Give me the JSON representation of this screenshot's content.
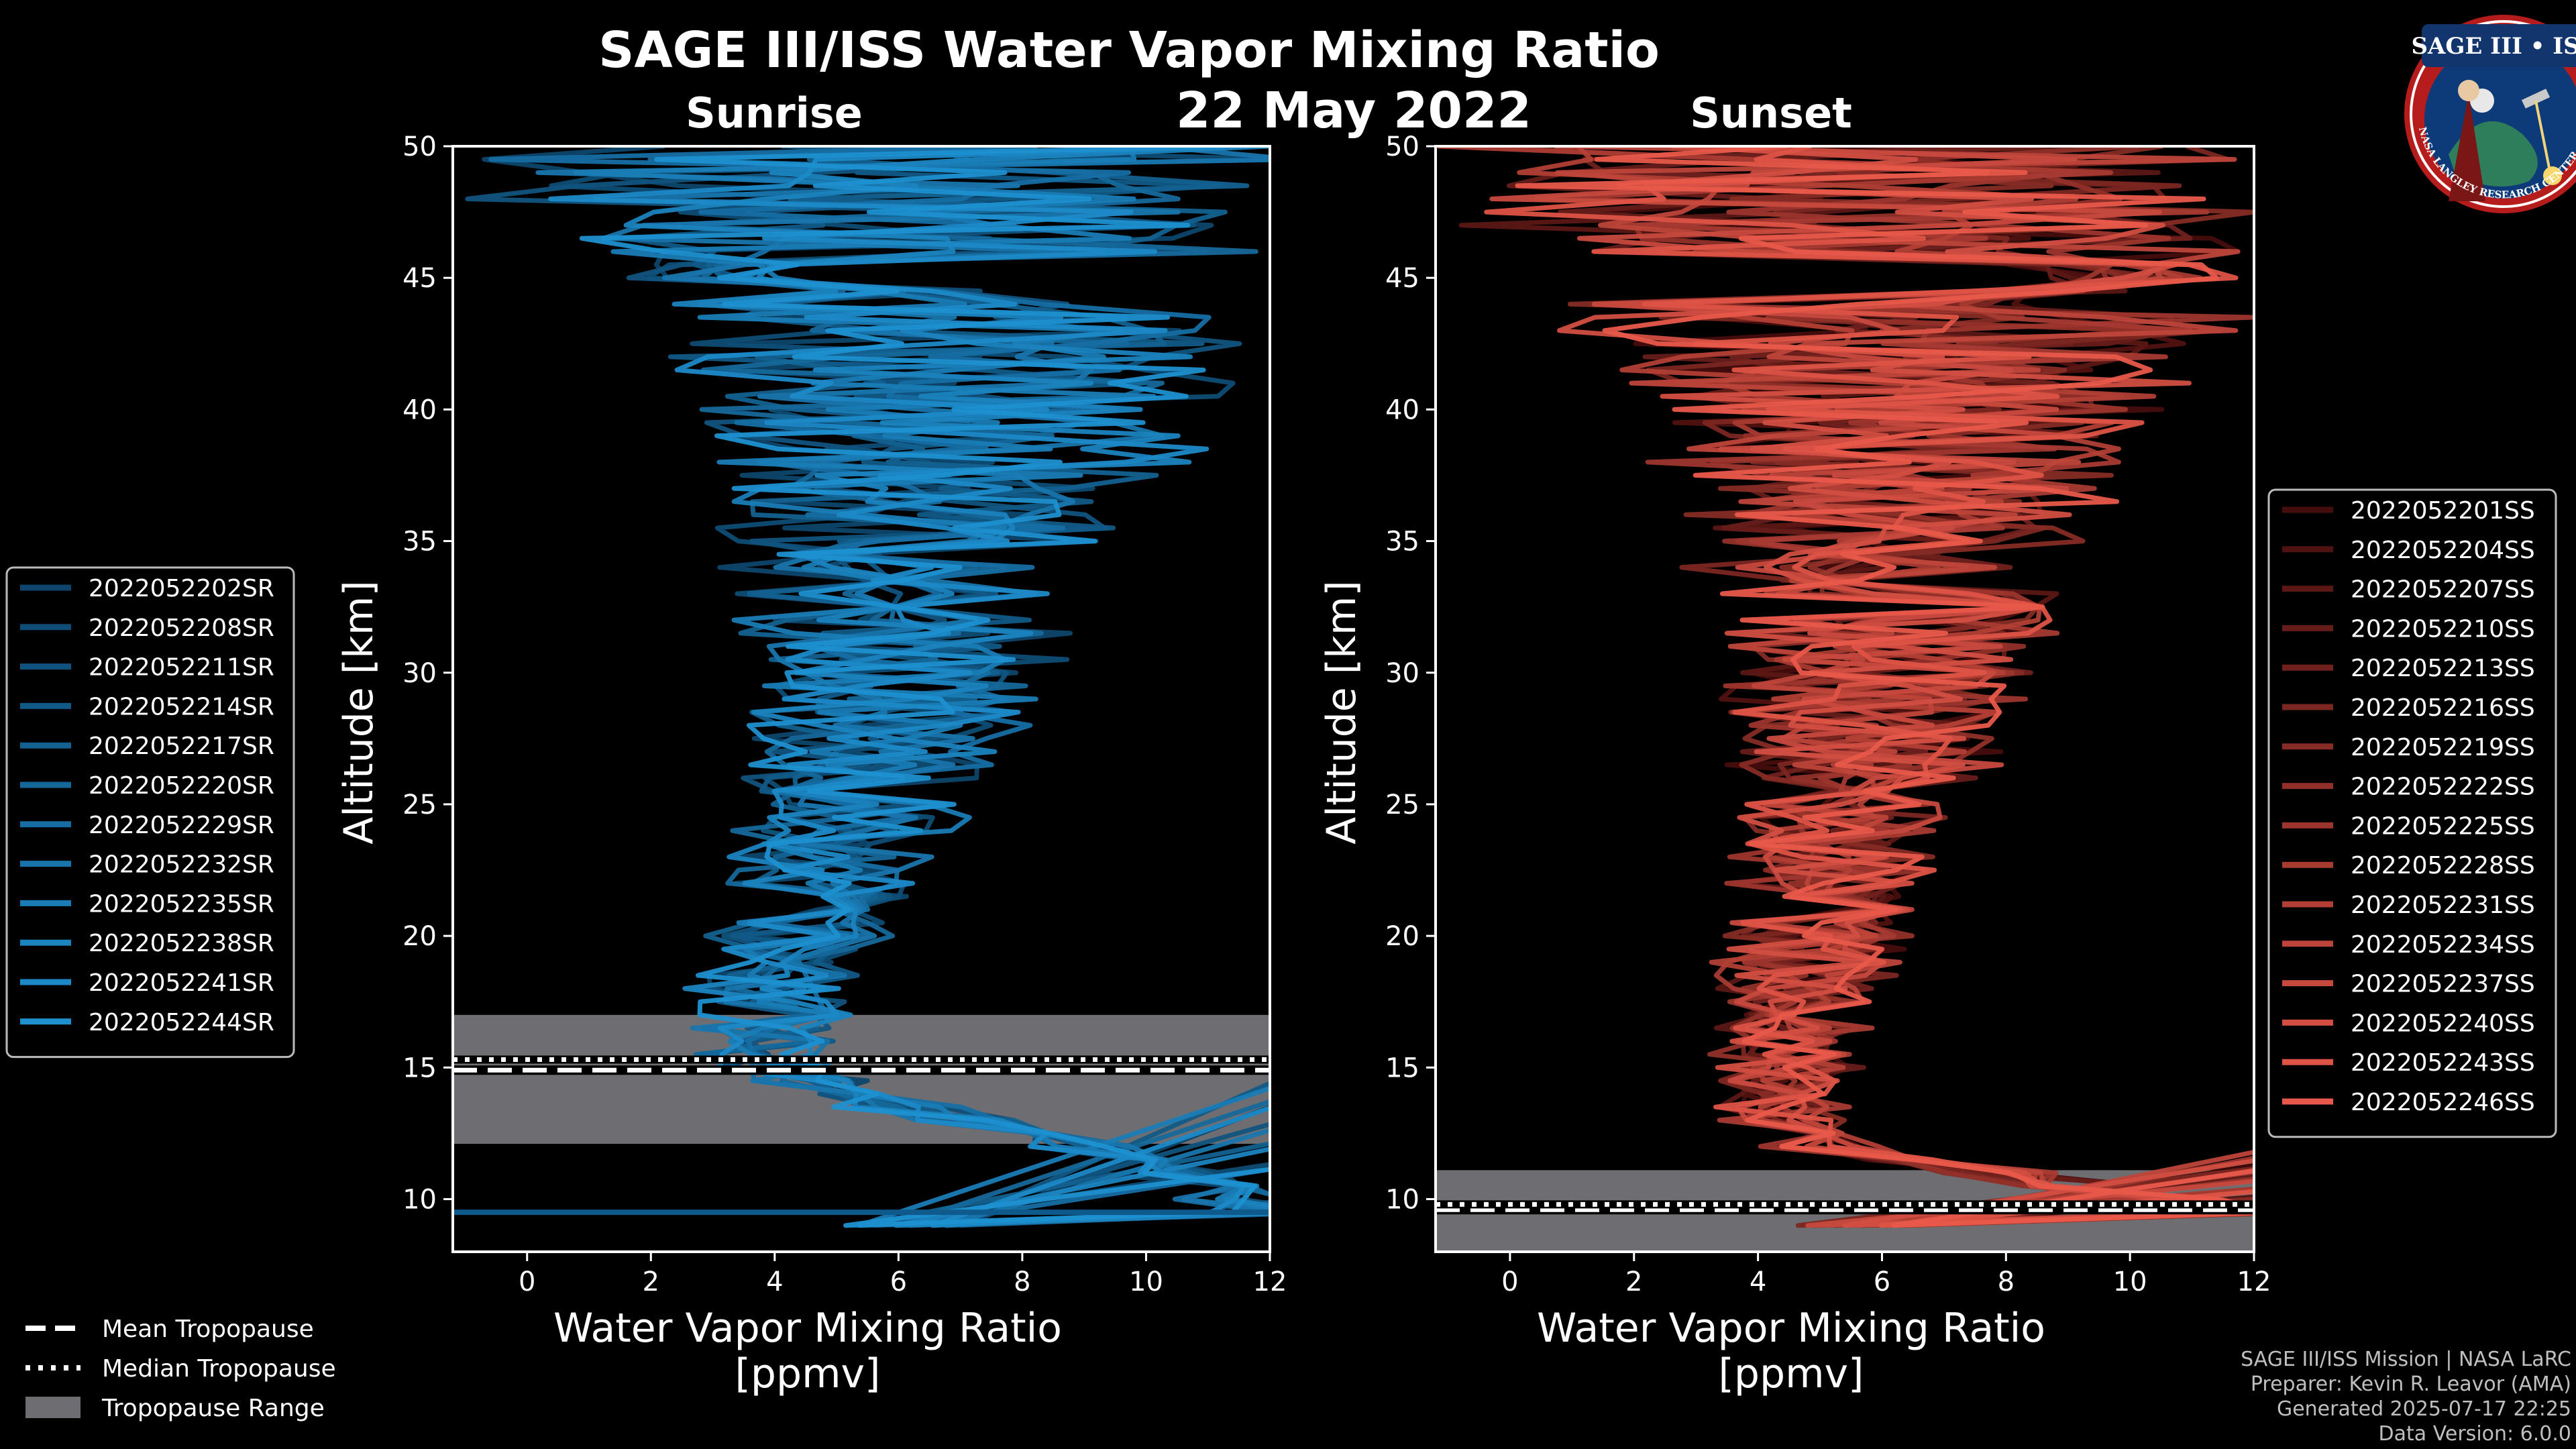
{
  "figure": {
    "title": "SAGE III/ISS Water Vapor Mixing Ratio",
    "date": "22 May 2022",
    "badge": {
      "name": "SAGE III • ISS",
      "ring_text": "BALL • NASA LANGLEY RESEARCH CENTER • TAS • ESA"
    },
    "credits": [
      "SAGE III/ISS Mission | NASA LaRC",
      "Preparer: Kevin R. Leavor (AMA)",
      "Generated 2025-07-17 22:25",
      "Data Version: 6.0.0"
    ],
    "bottom_legend": [
      {
        "label": "Mean Tropopause",
        "style": "dashed"
      },
      {
        "label": "Median Tropopause",
        "style": "dotted"
      },
      {
        "label": "Tropopause Range",
        "style": "patch"
      }
    ],
    "colors": {
      "sunrise": "#1e90d0",
      "sunset": "#e8584a",
      "tropo_fill": "#6e6e72",
      "background": "#000000"
    }
  },
  "chart_data": [
    {
      "id": "sunrise",
      "type": "line",
      "title": "Sunrise",
      "xlabel_line1": "Water Vapor Mixing Ratio",
      "xlabel_line2": "[ppmv]",
      "ylabel": "Altitude [km]",
      "xlim": [
        -1.2,
        12
      ],
      "ylim": [
        8,
        50
      ],
      "xticks": [
        0,
        2,
        4,
        6,
        8,
        10,
        12
      ],
      "yticks": [
        10,
        15,
        20,
        25,
        30,
        35,
        40,
        45,
        50
      ],
      "tropopause": {
        "mean": 14.9,
        "median": 15.3,
        "range": [
          12.1,
          17.0
        ]
      },
      "series_names": [
        "2022052202SR",
        "2022052208SR",
        "2022052211SR",
        "2022052214SR",
        "2022052217SR",
        "2022052220SR",
        "2022052229SR",
        "2022052232SR",
        "2022052235SR",
        "2022052238SR",
        "2022052241SR",
        "2022052244SR"
      ],
      "mean_profile": [
        {
          "alt": 9.5,
          "wv": 12.0
        },
        {
          "alt": 12.0,
          "wv": 9.0
        },
        {
          "alt": 14.0,
          "wv": 5.0
        },
        {
          "alt": 15.5,
          "wv": 3.6
        },
        {
          "alt": 18.0,
          "wv": 4.0
        },
        {
          "alt": 20.0,
          "wv": 4.4
        },
        {
          "alt": 25.0,
          "wv": 5.3
        },
        {
          "alt": 30.0,
          "wv": 6.0
        },
        {
          "alt": 35.0,
          "wv": 6.4
        },
        {
          "alt": 40.0,
          "wv": 6.8
        },
        {
          "alt": 45.0,
          "wv": 6.5
        },
        {
          "alt": 50.0,
          "wv": 6.0
        }
      ]
    },
    {
      "id": "sunset",
      "type": "line",
      "title": "Sunset",
      "xlabel_line1": "Water Vapor Mixing Ratio",
      "xlabel_line2": "[ppmv]",
      "ylabel": "Altitude [km]",
      "xlim": [
        -1.2,
        12
      ],
      "ylim": [
        8,
        50
      ],
      "xticks": [
        0,
        2,
        4,
        6,
        8,
        10,
        12
      ],
      "yticks": [
        10,
        15,
        20,
        25,
        30,
        35,
        40,
        45,
        50
      ],
      "tropopause": {
        "mean": 9.6,
        "median": 9.8,
        "range": [
          8.0,
          11.1
        ]
      },
      "series_names": [
        "2022052201SS",
        "2022052204SS",
        "2022052207SS",
        "2022052210SS",
        "2022052213SS",
        "2022052216SS",
        "2022052219SS",
        "2022052222SS",
        "2022052225SS",
        "2022052228SS",
        "2022052231SS",
        "2022052234SS",
        "2022052237SS",
        "2022052240SS",
        "2022052243SS",
        "2022052246SS"
      ],
      "mean_profile": [
        {
          "alt": 9.5,
          "wv": 12.0
        },
        {
          "alt": 11.0,
          "wv": 8.0
        },
        {
          "alt": 11.8,
          "wv": 5.0
        },
        {
          "alt": 13.0,
          "wv": 4.3
        },
        {
          "alt": 16.0,
          "wv": 4.5
        },
        {
          "alt": 20.0,
          "wv": 5.0
        },
        {
          "alt": 25.0,
          "wv": 5.5
        },
        {
          "alt": 30.0,
          "wv": 6.0
        },
        {
          "alt": 35.0,
          "wv": 6.1
        },
        {
          "alt": 40.0,
          "wv": 6.6
        },
        {
          "alt": 45.0,
          "wv": 6.0
        },
        {
          "alt": 50.0,
          "wv": 5.5
        }
      ]
    }
  ]
}
